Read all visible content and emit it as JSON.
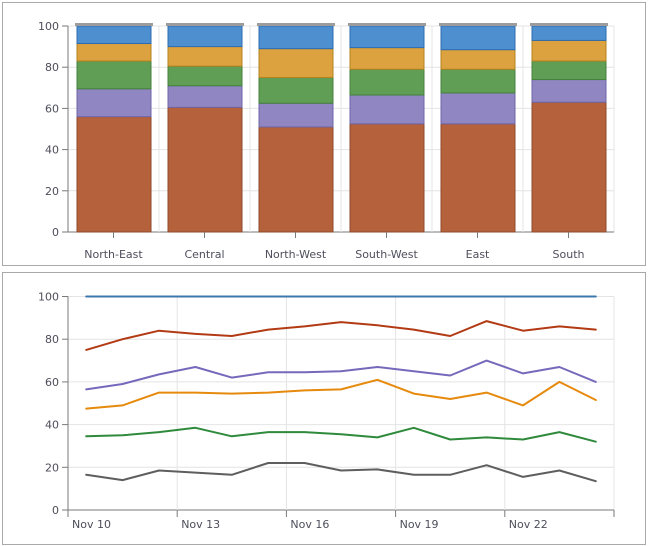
{
  "page": {
    "background": "#ffffff",
    "panel_border": "#a9a9a9",
    "axis_color": "#7a7a7a",
    "grid_color": "#e4e4e4",
    "label_color": "#4e4e5c"
  },
  "chart_data": [
    {
      "type": "bar",
      "stacking": "full-stacked-100",
      "title": "",
      "legend": "none",
      "grid": true,
      "ylim": [
        0,
        100
      ],
      "y_ticks": [
        0,
        20,
        40,
        60,
        80,
        100
      ],
      "categories": [
        "North-East",
        "Central",
        "North-West",
        "South-West",
        "East",
        "South"
      ],
      "cap_color": "#9c9c9c",
      "series": [
        {
          "name": "rust",
          "color": "#b5613c",
          "border": "#8e4a2b",
          "values": [
            56,
            60.5,
            51,
            52.5,
            52.5,
            63
          ]
        },
        {
          "name": "purple",
          "color": "#8f86c2",
          "border": "#6f66a8",
          "values": [
            13.5,
            10.5,
            11.5,
            14,
            15,
            11
          ]
        },
        {
          "name": "green",
          "color": "#5f9e54",
          "border": "#44803c",
          "values": [
            13.5,
            9.5,
            12.5,
            12.5,
            11.5,
            9
          ]
        },
        {
          "name": "orange",
          "color": "#dba23f",
          "border": "#b5811f",
          "values": [
            8.5,
            9.5,
            14,
            10.5,
            9.5,
            10
          ]
        },
        {
          "name": "blue",
          "color": "#4e8fd0",
          "border": "#2d6cb0",
          "values": [
            8.5,
            10,
            11,
            10.5,
            11.5,
            7
          ]
        }
      ]
    },
    {
      "type": "line",
      "title": "",
      "legend": "none",
      "grid": true,
      "ylim": [
        0,
        100
      ],
      "y_ticks": [
        0,
        20,
        40,
        60,
        80,
        100
      ],
      "x": [
        "Nov 10",
        "Nov 11",
        "Nov 12",
        "Nov 13",
        "Nov 14",
        "Nov 15",
        "Nov 16",
        "Nov 17",
        "Nov 18",
        "Nov 19",
        "Nov 20",
        "Nov 21",
        "Nov 22",
        "Nov 23",
        "Nov 24"
      ],
      "x_tick_labels": [
        "Nov 10",
        "Nov 13",
        "Nov 16",
        "Nov 19",
        "Nov 22"
      ],
      "label_every": 3,
      "series": [
        {
          "name": "blue",
          "color": "#3c78ac",
          "values": [
            100,
            100,
            100,
            100,
            100,
            100,
            100,
            100,
            100,
            100,
            100,
            100,
            100,
            100,
            100
          ]
        },
        {
          "name": "red",
          "color": "#b23b15",
          "values": [
            75,
            80,
            84,
            82.5,
            81.5,
            84.5,
            86,
            88,
            86.5,
            84.5,
            81.5,
            88.5,
            84,
            86,
            84.5
          ]
        },
        {
          "name": "purple",
          "color": "#7668bb",
          "values": [
            56.5,
            59,
            63.5,
            67,
            62,
            64.5,
            64.5,
            65,
            67,
            65,
            63,
            70,
            64,
            67,
            60
          ]
        },
        {
          "name": "orange",
          "color": "#e68a0d",
          "values": [
            47.5,
            49,
            55,
            55,
            54.5,
            55,
            56,
            56.5,
            61,
            54.5,
            52,
            55,
            49,
            60,
            51.5
          ]
        },
        {
          "name": "green",
          "color": "#2f8a3c",
          "values": [
            34.5,
            35,
            36.5,
            38.5,
            34.5,
            36.5,
            36.5,
            35.5,
            34,
            38.5,
            33,
            34,
            33,
            36.5,
            32
          ]
        },
        {
          "name": "gray",
          "color": "#5e5e5e",
          "values": [
            16.5,
            14,
            18.5,
            17.5,
            16.5,
            22,
            22,
            18.5,
            19,
            16.5,
            16.5,
            21,
            15.5,
            18.5,
            13.5
          ]
        }
      ]
    }
  ]
}
